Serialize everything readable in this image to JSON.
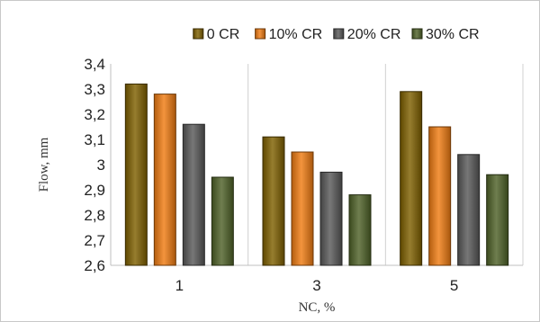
{
  "chart_data": {
    "type": "bar",
    "title": "",
    "categories": [
      "1",
      "3",
      "5"
    ],
    "xlabel": "NC, %",
    "ylabel": "Flow, mm",
    "ylim": [
      2.6,
      3.4
    ],
    "yticks": [
      "2,6",
      "2,7",
      "2,8",
      "2,9",
      "3",
      "3,1",
      "3,2",
      "3,3",
      "3,4"
    ],
    "grid": "vertical category separators",
    "legend_position": "top",
    "series": [
      {
        "name": "0 CR",
        "values": [
          3.32,
          3.11,
          3.29
        ],
        "color": "#7f6000"
      },
      {
        "name": "10% CR",
        "values": [
          3.28,
          3.05,
          3.15
        ],
        "color": "#f07c12"
      },
      {
        "name": "20% CR",
        "values": [
          3.16,
          2.97,
          3.04
        ],
        "color": "#595959"
      },
      {
        "name": "30% CR",
        "values": [
          2.95,
          2.88,
          2.96
        ],
        "color": "#4f6228"
      }
    ]
  }
}
